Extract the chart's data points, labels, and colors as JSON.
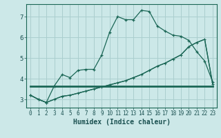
{
  "background_color": "#cce8e8",
  "grid_color": "#aacece",
  "line_color": "#1a6655",
  "xlabel": "Humidex (Indice chaleur)",
  "ylim": [
    2.6,
    7.6
  ],
  "xlim": [
    -0.5,
    23.5
  ],
  "yticks": [
    3,
    4,
    5,
    6,
    7
  ],
  "xticks": [
    0,
    1,
    2,
    3,
    4,
    5,
    6,
    7,
    8,
    9,
    10,
    11,
    12,
    13,
    14,
    15,
    16,
    17,
    18,
    19,
    20,
    21,
    22,
    23
  ],
  "line1_x": [
    0,
    1,
    2,
    3,
    4,
    5,
    6,
    7,
    8,
    9,
    10,
    11,
    12,
    13,
    14,
    15,
    16,
    17,
    18,
    19,
    20,
    21,
    22,
    23
  ],
  "line1_y": [
    3.2,
    3.0,
    2.85,
    3.65,
    4.2,
    4.05,
    4.4,
    4.45,
    4.45,
    5.15,
    6.25,
    7.0,
    6.85,
    6.85,
    7.3,
    7.25,
    6.55,
    6.3,
    6.1,
    6.05,
    5.85,
    5.3,
    4.85,
    3.85
  ],
  "line2_x": [
    0,
    1,
    2,
    3,
    4,
    5,
    6,
    7,
    8,
    9,
    10,
    11,
    12,
    13,
    14,
    15,
    16,
    17,
    18,
    19,
    20,
    21,
    22,
    23
  ],
  "line2_y": [
    3.2,
    3.0,
    2.85,
    3.0,
    3.15,
    3.2,
    3.3,
    3.4,
    3.5,
    3.6,
    3.7,
    3.8,
    3.9,
    4.05,
    4.2,
    4.4,
    4.6,
    4.75,
    4.95,
    5.15,
    5.55,
    5.75,
    5.9,
    3.75
  ],
  "line3_x": [
    0,
    23
  ],
  "line3_y": [
    3.65,
    3.65
  ]
}
